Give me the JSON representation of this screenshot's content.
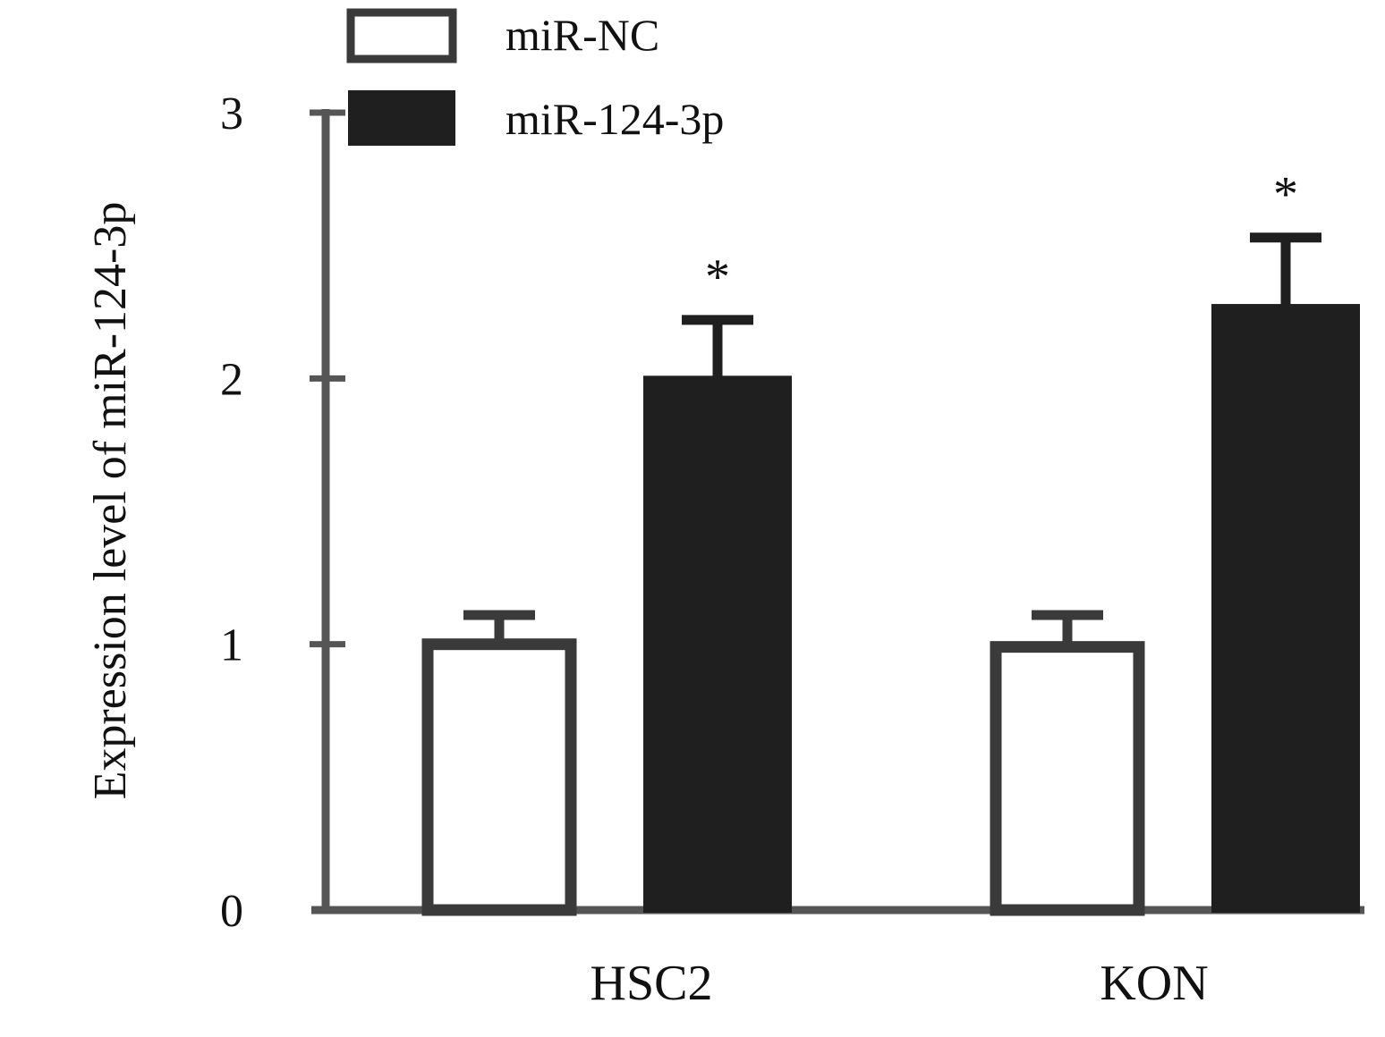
{
  "chart_data": {
    "type": "bar",
    "categories": [
      "HSC2",
      "KON"
    ],
    "series": [
      {
        "name": "miR-NC",
        "values": [
          1.0,
          0.99
        ],
        "errors": [
          0.11,
          0.12
        ],
        "fill": "#ffffff",
        "stroke": "#3a3a3a"
      },
      {
        "name": "miR-124-3p",
        "values": [
          2.0,
          2.27
        ],
        "errors": [
          0.22,
          0.26
        ],
        "fill": "#1f1f1f",
        "stroke": "#1f1f1f"
      }
    ],
    "significance": [
      "*",
      "*"
    ],
    "title": "",
    "xlabel": "",
    "ylabel": "Expression level of miR-124-3p",
    "ylim": [
      0,
      3
    ],
    "yticks": [
      "0",
      "1",
      "2",
      "3"
    ],
    "grid": false,
    "legend_position": "top-left"
  },
  "colors": {
    "axis": "#555555",
    "text": "#111111"
  }
}
